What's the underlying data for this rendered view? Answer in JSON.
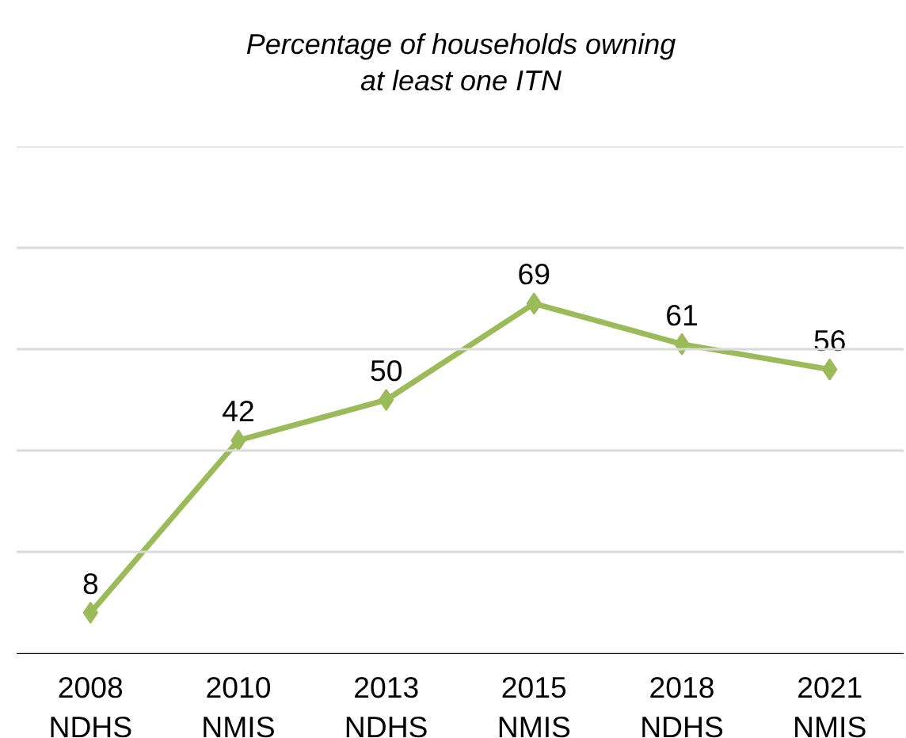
{
  "chart_data": {
    "type": "line",
    "title": "Percentage of households owning\nat least one ITN",
    "categories": [
      "2008\nNDHS",
      "2010\nNMIS",
      "2013\nNDHS",
      "2015\nNMIS",
      "2018\nNDHS",
      "2021\nNMIS"
    ],
    "series": [
      {
        "color": "#9bbb59",
        "values": [
          8,
          42,
          50,
          69,
          61,
          56
        ]
      }
    ],
    "ylim": [
      0,
      100
    ],
    "yticks": [
      {
        "value": 0,
        "label": null
      },
      {
        "value": 20,
        "label": null
      },
      {
        "value": 40,
        "label": null
      },
      {
        "value": 60,
        "label": null
      },
      {
        "value": 80,
        "label": null
      },
      {
        "value": 100,
        "label": null
      }
    ],
    "tick_labels": "x",
    "grid": "y",
    "data_labels": true,
    "marker": "diamond",
    "line_style": "solid"
  }
}
